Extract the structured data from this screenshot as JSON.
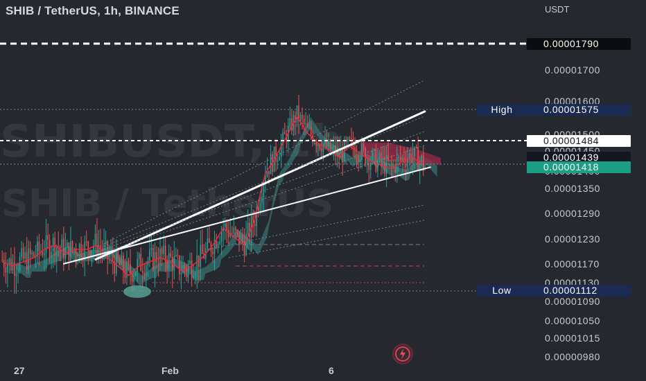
{
  "chart_title": "SHIB / TetherUS, 1h, BINANCE",
  "watermark": {
    "top": "SHIBUSDT, 1h",
    "bottom": "SHIB / TetherUS"
  },
  "currency": "USDT",
  "colors": {
    "background": "#25282f",
    "candle_up": "#26a69a",
    "candle_down": "#ef5350",
    "cloud_up": "#3d8a87",
    "cloud_down": "#9c2a4a",
    "baseline": "#e8293f",
    "trendline": "#ffffff"
  },
  "price_tags": {
    "dashed_level": "0.00001790",
    "high": "0.00001575",
    "white_level": "0.00001484",
    "dark_level": "0.00001439",
    "last_price": "0.00001418",
    "low": "0.00001112"
  },
  "side_labels": {
    "high": "High",
    "low": "Low"
  },
  "chart_data": {
    "type": "line",
    "title": "SHIB / TetherUS, 1h, BINANCE",
    "xlabel": "",
    "ylabel": "",
    "x_tick_labels": [
      "27",
      "Feb",
      "6"
    ],
    "y_tick_labels": [
      "0.00001700",
      "0.00001600",
      "0.00001500",
      "0.00001450",
      "0.00001400",
      "0.00001350",
      "0.00001290",
      "0.00001230",
      "0.00001170",
      "0.00001130",
      "0.00001090",
      "0.00001050",
      "0.00001015",
      "0.00000980"
    ],
    "ylim": [
      9.5e-06,
      1.82e-05
    ],
    "grid": false,
    "series": [
      {
        "values": [
          1.18e-05,
          1.17e-05,
          1.18e-05,
          1.19e-05,
          1.21e-05,
          1.22e-05,
          1.2e-05,
          1.21e-05,
          1.21e-05,
          1.22e-05,
          1.19e-05,
          1.17e-05,
          1.15e-05,
          1.17e-05,
          1.18e-05,
          1.19e-05,
          1.18e-05,
          1.16e-05,
          1.17e-05,
          1.19e-05,
          1.22e-05,
          1.26e-05,
          1.24e-05,
          1.22e-05,
          1.28e-05,
          1.4e-05,
          1.44e-05,
          1.5e-05,
          1.56e-05,
          1.51e-05,
          1.48e-05,
          1.46e-05,
          1.44e-05,
          1.47e-05,
          1.45e-05,
          1.43e-05,
          1.42e-05,
          1.41e-05,
          1.43e-05,
          1.44e-05,
          1.42e-05
        ]
      }
    ],
    "reference_levels": [
      1.79e-05,
      1.575e-05,
      1.484e-05,
      1.439e-05,
      1.418e-05,
      1.112e-05
    ],
    "trend_lines": [
      {
        "from": [
          0.18,
          1.18e-05
        ],
        "to": [
          0.65,
          1.57e-05
        ]
      },
      {
        "from": [
          0.12,
          1.17e-05
        ],
        "to": [
          0.66,
          1.41e-05
        ]
      }
    ]
  }
}
